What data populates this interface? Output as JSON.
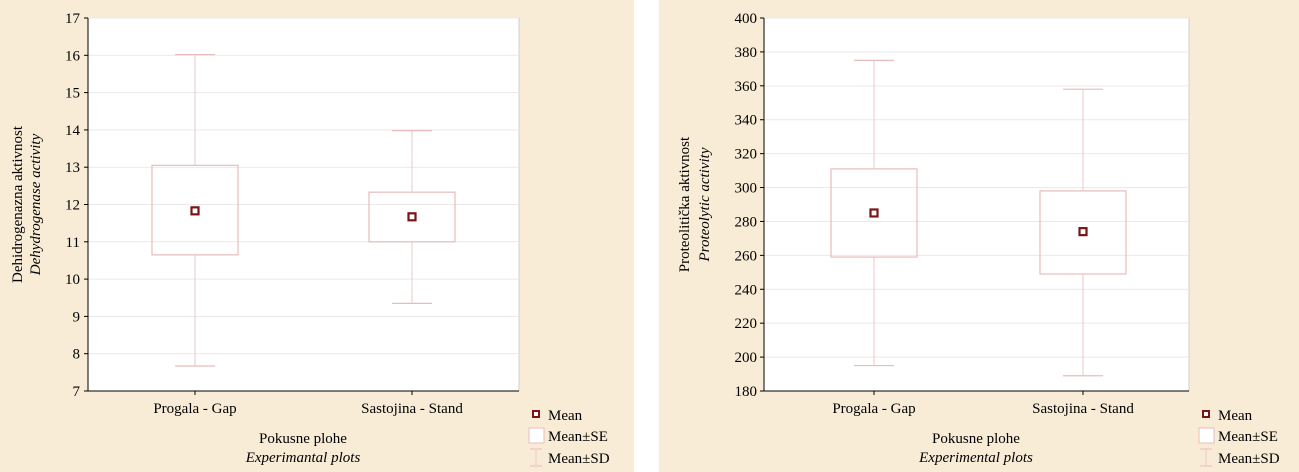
{
  "colors": {
    "panel_bg": "#f8ecd6",
    "plot_bg": "#ffffff",
    "grid": "#e9e9e9",
    "box_stroke": "#e8bcbc",
    "whisker": "#ecc8c8",
    "mean_marker": "#7a1515",
    "axis": "#000000"
  },
  "chart_data": [
    {
      "type": "box",
      "title": "",
      "ylabel": "Dehidrogenazna aktivnost",
      "ylabel_italic": "Dehydrogenase activity",
      "xlabel": "Pokusne plohe",
      "xlabel_italic": "Experimantal plots",
      "ylim": [
        7,
        17
      ],
      "yticks": [
        7,
        8,
        9,
        10,
        11,
        12,
        13,
        14,
        15,
        16,
        17
      ],
      "ytick_labels": [
        "7",
        "8",
        "9",
        "10",
        "11",
        "12",
        "13",
        "14",
        "15",
        "16",
        "17"
      ],
      "grid": true,
      "legend_position": "bottom-right",
      "legend": [
        "Mean",
        "Mean±SE",
        "Mean±SD"
      ],
      "categories": [
        "Progala - Gap",
        "Sastojina - Stand"
      ],
      "mean": [
        11.83,
        11.67
      ],
      "se_low": [
        10.65,
        11.0
      ],
      "se_high": [
        13.05,
        12.33
      ],
      "sd_low": [
        7.67,
        9.35
      ],
      "sd_high": [
        16.02,
        13.98
      ]
    },
    {
      "type": "box",
      "title": "",
      "ylabel": "Proteolitička aktivnost",
      "ylabel_italic": "Proteolytic activity",
      "xlabel": "Pokusne plohe",
      "xlabel_italic": "Experimental plots",
      "ylim": [
        180,
        400
      ],
      "yticks": [
        180,
        200,
        220,
        240,
        260,
        280,
        300,
        320,
        340,
        360,
        380,
        400
      ],
      "ytick_labels": [
        "180",
        "200",
        "220",
        "240",
        "260",
        "280",
        "300",
        "320",
        "340",
        "360",
        "380",
        "400"
      ],
      "grid": true,
      "legend_position": "bottom-right",
      "legend": [
        "Mean",
        "Mean±SE",
        "Mean±SD"
      ],
      "categories": [
        "Progala - Gap",
        "Sastojina - Stand"
      ],
      "mean": [
        285,
        274
      ],
      "se_low": [
        259,
        249
      ],
      "se_high": [
        311,
        298
      ],
      "sd_low": [
        195,
        189
      ],
      "sd_high": [
        375,
        358
      ]
    }
  ]
}
